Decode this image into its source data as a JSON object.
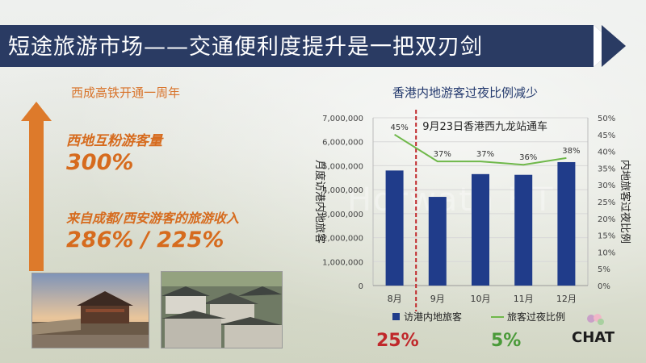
{
  "title": "短途旅游市场——交通便利度提升是一把双刃剑",
  "left": {
    "subtitle": "西成高铁开通一周年",
    "stat1_label": "西地互粉游客量",
    "stat1_value": "300%",
    "stat2_label": "来自成都/西安游客的旅游收入",
    "stat2_value": "286% / 225%"
  },
  "watermark": "Horwath HTL",
  "chart_data": {
    "type": "bar",
    "title": "香港内地游客过夜比例减少",
    "categories": [
      "8月",
      "9月",
      "10月",
      "11月",
      "12月"
    ],
    "series": [
      {
        "name": "访港内地旅客",
        "type": "bar",
        "axis": "left",
        "values": [
          4800000,
          3700000,
          4650000,
          4620000,
          5150000
        ],
        "color": "#203c8a"
      },
      {
        "name": "旅客过夜比例",
        "type": "line",
        "axis": "right",
        "values": [
          45,
          37,
          37,
          36,
          38
        ],
        "labels": [
          "45%",
          "37%",
          "37%",
          "36%",
          "38%"
        ],
        "color": "#6fb84a"
      }
    ],
    "ylabel": "月度访港内地旅客",
    "ylabel2": "内地旅客过夜比例",
    "ylim": [
      0,
      7000000
    ],
    "ylim2": [
      0,
      50
    ],
    "yticks": [
      "0",
      "1,000,000",
      "2,000,000",
      "3,000,000",
      "4,000,000",
      "5,000,000",
      "6,000,000",
      "7,000,000"
    ],
    "yticks2": [
      "0%",
      "5%",
      "10%",
      "15%",
      "20%",
      "25%",
      "30%",
      "35%",
      "40%",
      "45%",
      "50%"
    ],
    "annotation": "9月23日香港西九龙站通车",
    "annotation_between": [
      "8月",
      "9月"
    ],
    "legend_position": "bottom",
    "grid": true
  },
  "bottom_stats": {
    "bar_change": {
      "text": "25%",
      "color": "#c0282b"
    },
    "line_change": {
      "text": "5%",
      "color": "#4a9a39"
    }
  },
  "brand": "CHAT"
}
